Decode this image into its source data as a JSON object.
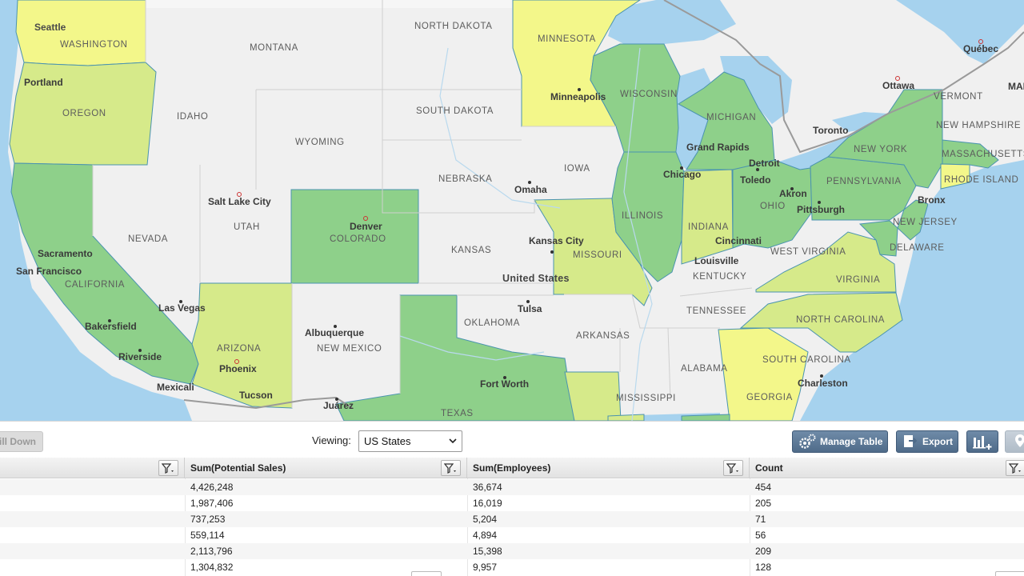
{
  "map": {
    "country_label": "United States",
    "state_labels": [
      {
        "id": "washington",
        "text": "WASHINGTON"
      },
      {
        "id": "oregon",
        "text": "OREGON"
      },
      {
        "id": "montana",
        "text": "MONTANA"
      },
      {
        "id": "idaho",
        "text": "IDAHO"
      },
      {
        "id": "wyoming",
        "text": "WYOMING"
      },
      {
        "id": "north-dakota",
        "text": "NORTH DAKOTA"
      },
      {
        "id": "south-dakota",
        "text": "SOUTH DAKOTA"
      },
      {
        "id": "minnesota",
        "text": "MINNESOTA"
      },
      {
        "id": "wisconsin",
        "text": "WISCONSIN"
      },
      {
        "id": "michigan",
        "text": "MICHIGAN"
      },
      {
        "id": "nebraska",
        "text": "NEBRASKA"
      },
      {
        "id": "iowa",
        "text": "IOWA"
      },
      {
        "id": "nevada",
        "text": "NEVADA"
      },
      {
        "id": "utah",
        "text": "UTAH"
      },
      {
        "id": "colorado",
        "text": "COLORADO"
      },
      {
        "id": "kansas",
        "text": "KANSAS"
      },
      {
        "id": "missouri",
        "text": "MISSOURI"
      },
      {
        "id": "illinois",
        "text": "ILLINOIS"
      },
      {
        "id": "indiana",
        "text": "INDIANA"
      },
      {
        "id": "ohio",
        "text": "OHIO"
      },
      {
        "id": "pennsylvania",
        "text": "PENNSYLVANIA"
      },
      {
        "id": "new-york",
        "text": "NEW YORK"
      },
      {
        "id": "vermont",
        "text": "VERMONT"
      },
      {
        "id": "new-hampshire",
        "text": "NEW HAMPSHIRE"
      },
      {
        "id": "massachusetts",
        "text": "MASSACHUSETTS"
      },
      {
        "id": "rhode-island",
        "text": "RHODE ISLAND"
      },
      {
        "id": "new-jersey",
        "text": "NEW JERSEY"
      },
      {
        "id": "delaware",
        "text": "DELAWARE"
      },
      {
        "id": "west-virginia",
        "text": "WEST VIRGINIA"
      },
      {
        "id": "virginia",
        "text": "VIRGINIA"
      },
      {
        "id": "kentucky",
        "text": "KENTUCKY"
      },
      {
        "id": "tennessee",
        "text": "TENNESSEE"
      },
      {
        "id": "north-carolina",
        "text": "NORTH CAROLINA"
      },
      {
        "id": "south-carolina",
        "text": "SOUTH CAROLINA"
      },
      {
        "id": "georgia",
        "text": "GEORGIA"
      },
      {
        "id": "alabama",
        "text": "ALABAMA"
      },
      {
        "id": "mississippi",
        "text": "MISSISSIPPI"
      },
      {
        "id": "arkansas",
        "text": "ARKANSAS"
      },
      {
        "id": "oklahoma",
        "text": "OKLAHOMA"
      },
      {
        "id": "texas",
        "text": "TEXAS"
      },
      {
        "id": "new-mexico",
        "text": "NEW MEXICO"
      },
      {
        "id": "arizona",
        "text": "ARIZONA"
      },
      {
        "id": "california",
        "text": "CALIFORNIA"
      }
    ],
    "city_labels": [
      {
        "id": "seattle",
        "text": "Seattle"
      },
      {
        "id": "portland",
        "text": "Portland"
      },
      {
        "id": "minneapolis",
        "text": "Minneapolis"
      },
      {
        "id": "grand-rapids",
        "text": "Grand Rapids"
      },
      {
        "id": "detroit",
        "text": "Detroit"
      },
      {
        "id": "toronto",
        "text": "Toronto"
      },
      {
        "id": "ottawa",
        "text": "Ottawa"
      },
      {
        "id": "quebec",
        "text": "Québec"
      },
      {
        "id": "mai",
        "text": "MAI"
      },
      {
        "id": "chicago",
        "text": "Chicago"
      },
      {
        "id": "toledo",
        "text": "Toledo"
      },
      {
        "id": "akron",
        "text": "Akron"
      },
      {
        "id": "pittsburgh",
        "text": "Pittsburgh"
      },
      {
        "id": "bronx",
        "text": "Bronx"
      },
      {
        "id": "omaha",
        "text": "Omaha"
      },
      {
        "id": "salt-lake-city",
        "text": "Salt Lake City"
      },
      {
        "id": "denver",
        "text": "Denver"
      },
      {
        "id": "kansas-city",
        "text": "Kansas City"
      },
      {
        "id": "cincinnati",
        "text": "Cincinnati"
      },
      {
        "id": "louisville",
        "text": "Louisville"
      },
      {
        "id": "sacramento",
        "text": "Sacramento"
      },
      {
        "id": "san-francisco",
        "text": "San Francisco"
      },
      {
        "id": "las-vegas",
        "text": "Las Vegas"
      },
      {
        "id": "bakersfield",
        "text": "Bakersfield"
      },
      {
        "id": "riverside",
        "text": "Riverside"
      },
      {
        "id": "phoenix",
        "text": "Phoenix"
      },
      {
        "id": "tucson",
        "text": "Tucson"
      },
      {
        "id": "mexicali",
        "text": "Mexicali"
      },
      {
        "id": "albuquerque",
        "text": "Albuquerque"
      },
      {
        "id": "juarez",
        "text": "Juárez"
      },
      {
        "id": "tulsa",
        "text": "Tulsa"
      },
      {
        "id": "fort-worth",
        "text": "Fort Worth"
      },
      {
        "id": "charleston",
        "text": "Charleston"
      }
    ]
  },
  "toolbar": {
    "drill_down_label": "Drill Down",
    "viewing_label": "Viewing:",
    "viewing_value": "US States",
    "manage_table_label": "Manage Table",
    "export_label": "Export"
  },
  "table": {
    "columns": [
      "",
      "Sum(Potential Sales)",
      "Sum(Employees)",
      "Count"
    ],
    "rows": [
      [
        "",
        "4,426,248",
        "36,674",
        "454"
      ],
      [
        "",
        "1,987,406",
        "16,019",
        "205"
      ],
      [
        "",
        "737,253",
        "5,204",
        "71"
      ],
      [
        "",
        "559,114",
        "4,894",
        "56"
      ],
      [
        "",
        "2,113,796",
        "15,398",
        "209"
      ],
      [
        "",
        "1,304,832",
        "9,957",
        "128"
      ]
    ]
  },
  "colors": {
    "water": "#a6d2ee",
    "land": "#f0f0f0",
    "dark_green": "#8ed08a",
    "mid_green": "#b9e08c",
    "light_green": "#d6ea8a",
    "yellow": "#f3f78a",
    "button_blue": "#5a7594"
  }
}
